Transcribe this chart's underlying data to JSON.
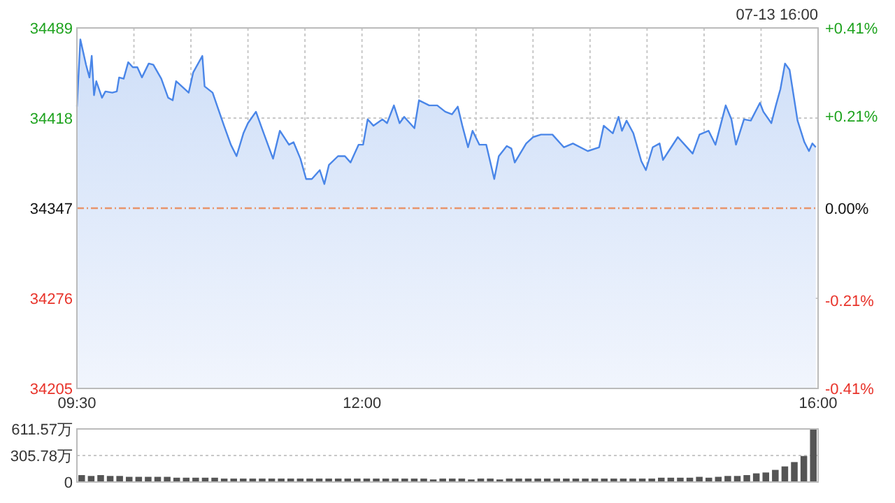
{
  "chart_data": [
    {
      "type": "area",
      "color": "#4a86e8",
      "annotations": [
        "07-13 16:00"
      ],
      "x": [
        9.5,
        9.53,
        9.58,
        9.61,
        9.63,
        9.65,
        9.67,
        9.72,
        9.75,
        9.81,
        9.85,
        9.87,
        9.91,
        9.95,
        9.99,
        10.03,
        10.07,
        10.13,
        10.17,
        10.24,
        10.3,
        10.34,
        10.37,
        10.42,
        10.48,
        10.52,
        10.6,
        10.62,
        10.69,
        10.74,
        10.79,
        10.85,
        10.9,
        10.96,
        11.0,
        11.07,
        11.13,
        11.22,
        11.28,
        11.36,
        11.4,
        11.46,
        11.51,
        11.56,
        11.63,
        11.67,
        11.71,
        11.79,
        11.85,
        11.9,
        11.97,
        12.01,
        12.05,
        12.1,
        12.18,
        12.22,
        12.28,
        12.33,
        12.37,
        12.46,
        12.5,
        12.59,
        12.66,
        12.73,
        12.79,
        12.84,
        12.88,
        12.93,
        12.97,
        13.03,
        13.09,
        13.16,
        13.2,
        13.27,
        13.31,
        13.34,
        13.44,
        13.5,
        13.57,
        13.67,
        13.77,
        13.85,
        13.98,
        14.08,
        14.12,
        14.2,
        14.25,
        14.28,
        14.32,
        14.38,
        14.45,
        14.49,
        14.55,
        14.61,
        14.64,
        14.69,
        14.77,
        14.83,
        14.9,
        14.96,
        15.04,
        15.1,
        15.19,
        15.24,
        15.28,
        15.35,
        15.41,
        15.49,
        15.52,
        15.59,
        15.63,
        15.67,
        15.71,
        15.75,
        15.82,
        15.88,
        15.92,
        15.95,
        15.98
      ],
      "values": [
        34427,
        34480,
        34460,
        34450,
        34467,
        34436,
        34447,
        34434,
        34439,
        34438,
        34439,
        34450,
        34449,
        34462,
        34458,
        34458,
        34450,
        34461,
        34460,
        34449,
        34434,
        34432,
        34447,
        34443,
        34438,
        34454,
        34467,
        34443,
        34438,
        34425,
        34412,
        34397,
        34388,
        34406,
        34414,
        34423,
        34408,
        34386,
        34408,
        34397,
        34399,
        34386,
        34370,
        34370,
        34377,
        34366,
        34381,
        34388,
        34388,
        34383,
        34397,
        34397,
        34417,
        34412,
        34417,
        34414,
        34428,
        34414,
        34419,
        34410,
        34432,
        34428,
        34428,
        34423,
        34421,
        34427,
        34412,
        34395,
        34408,
        34397,
        34397,
        34370,
        34388,
        34396,
        34394,
        34383,
        34398,
        34403,
        34405,
        34405,
        34395,
        34398,
        34392,
        34395,
        34412,
        34406,
        34419,
        34408,
        34416,
        34406,
        34384,
        34377,
        34395,
        34398,
        34385,
        34392,
        34403,
        34397,
        34390,
        34405,
        34408,
        34397,
        34428,
        34417,
        34397,
        34417,
        34416,
        34430,
        34423,
        34414,
        34428,
        34441,
        34461,
        34456,
        34416,
        34399,
        34392,
        34398,
        34395
      ],
      "xlim": [
        9.5,
        16
      ],
      "xticks": [
        {
          "value": 9.5,
          "label": "09:30"
        },
        {
          "value": 10,
          "label": null
        },
        {
          "value": 10.5,
          "label": null
        },
        {
          "value": 11,
          "label": null
        },
        {
          "value": 11.5,
          "label": null
        },
        {
          "value": 12,
          "label": "12:00"
        },
        {
          "value": 12.5,
          "label": null
        },
        {
          "value": 13,
          "label": null
        },
        {
          "value": 13.5,
          "label": null
        },
        {
          "value": 14,
          "label": null
        },
        {
          "value": 14.5,
          "label": null
        },
        {
          "value": 15,
          "label": null
        },
        {
          "value": 15.5,
          "label": null
        },
        {
          "value": 16,
          "label": "16:00"
        }
      ],
      "ylim": [
        34205,
        34489
      ],
      "yticks": [
        34205,
        34276,
        34347,
        34418,
        34489
      ],
      "y2lim": [
        -0.41,
        0.41
      ],
      "y2ticks": [
        {
          "value": -0.41,
          "label": "-0.41%"
        },
        {
          "value": -0.21,
          "label": "-0.21%"
        },
        {
          "value": 0,
          "label": "0.00%"
        },
        {
          "value": 0.21,
          "label": "+0.21%"
        },
        {
          "value": 0.41,
          "label": "+0.41%"
        }
      ],
      "ref_lines": [
        {
          "axis": "y",
          "value": 34347,
          "color": "#e8956b",
          "line_style": "dashed"
        }
      ],
      "grid": true
    },
    {
      "type": "bar",
      "color": "#555555",
      "tick_labels": "y",
      "grid": "y",
      "categories": [
        null,
        null,
        null,
        null,
        null,
        null,
        null,
        null,
        null,
        null,
        null,
        null,
        null,
        null,
        null,
        null,
        null,
        null,
        null,
        null,
        null,
        null,
        null,
        null,
        null,
        null,
        null,
        null,
        null,
        null,
        null,
        null,
        null,
        null,
        null,
        null,
        null,
        null,
        null,
        null,
        null,
        null,
        null,
        null,
        null,
        null,
        null,
        null,
        null,
        null,
        null,
        null,
        null,
        null,
        null,
        null,
        null,
        null,
        null,
        null,
        null,
        null,
        null,
        null,
        null,
        null,
        null,
        null,
        null,
        null,
        null,
        null,
        null,
        null,
        null,
        null,
        null,
        null
      ],
      "values": [
        80,
        70,
        80,
        70,
        70,
        60,
        60,
        60,
        60,
        60,
        50,
        50,
        50,
        50,
        50,
        40,
        40,
        40,
        40,
        40,
        40,
        40,
        40,
        40,
        40,
        40,
        40,
        40,
        40,
        40,
        40,
        40,
        40,
        40,
        40,
        40,
        40,
        30,
        40,
        40,
        40,
        30,
        40,
        40,
        30,
        40,
        40,
        40,
        40,
        40,
        40,
        40,
        40,
        40,
        40,
        40,
        40,
        40,
        40,
        40,
        40,
        50,
        50,
        50,
        50,
        60,
        50,
        60,
        70,
        70,
        80,
        100,
        110,
        140,
        180,
        230,
        300,
        611.57
      ],
      "ylim": [
        0,
        611.57
      ],
      "yticks": [
        {
          "value": 0,
          "label": "0"
        },
        {
          "value": 305.78,
          "label": "305.78万"
        },
        {
          "value": 611.57,
          "label": "611.57万"
        }
      ]
    }
  ]
}
